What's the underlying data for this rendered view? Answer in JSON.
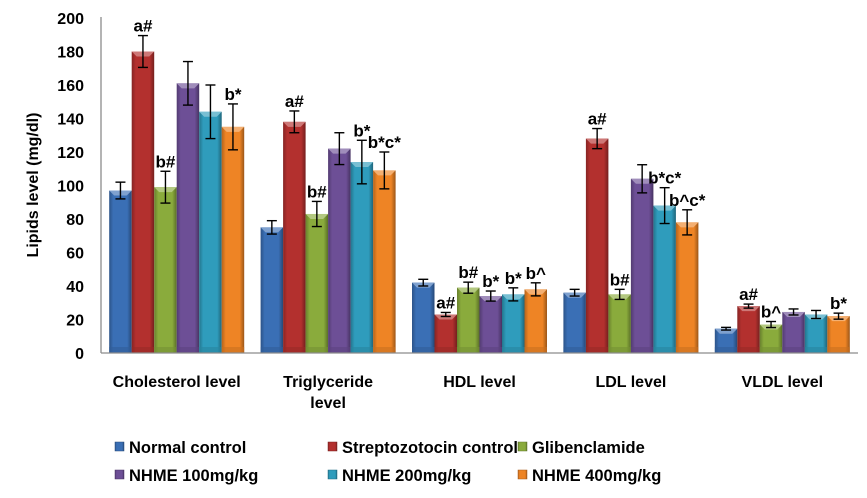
{
  "chart_data": {
    "type": "bar",
    "title": "",
    "xlabel": "",
    "ylabel": "Lipids level (mg/dl)",
    "ylim": [
      0,
      200
    ],
    "yticks": [
      0,
      20,
      40,
      60,
      80,
      100,
      120,
      140,
      160,
      180,
      200
    ],
    "grid": false,
    "legend_position": "bottom",
    "categories": [
      "Cholesterol level",
      "Triglyceride level",
      "HDL level",
      "LDL level",
      "VLDL level"
    ],
    "category_label_lines": [
      [
        "Cholesterol level"
      ],
      [
        "Triglyceride",
        "level"
      ],
      [
        "HDL level"
      ],
      [
        "LDL level"
      ],
      [
        "VLDL level"
      ]
    ],
    "series": [
      {
        "name": "Normal control",
        "color": "#3a6fb5",
        "values": [
          97,
          75,
          42,
          36,
          14.5
        ],
        "errors": [
          5,
          4,
          2,
          2,
          0.8
        ],
        "annotations": [
          "",
          "",
          "",
          "",
          ""
        ]
      },
      {
        "name": "Streptozotocin control",
        "color": "#b3302e",
        "values": [
          180,
          138,
          23,
          128,
          28
        ],
        "errors": [
          9.5,
          6.5,
          1.2,
          6,
          1.2
        ],
        "annotations": [
          "a#",
          "a#",
          "a#",
          "a#",
          "a#"
        ]
      },
      {
        "name": "Glibenclamide",
        "color": "#8aab3c",
        "values": [
          99,
          83,
          39,
          35,
          17
        ],
        "errors": [
          9.5,
          7.5,
          3.3,
          3,
          1.8
        ],
        "annotations": [
          "b#",
          "b#",
          "b#",
          "b#",
          "b^"
        ]
      },
      {
        "name": "NHME 100mg/kg",
        "color": "#6d4f96",
        "values": [
          161,
          122,
          34,
          104,
          24.5
        ],
        "errors": [
          13,
          9.5,
          3,
          8.4,
          1.8
        ],
        "annotations": [
          "",
          "",
          "b*",
          "",
          ""
        ]
      },
      {
        "name": "NHME 200mg/kg",
        "color": "#2f9cbc",
        "values": [
          144,
          114,
          35,
          88,
          23
        ],
        "errors": [
          16,
          13,
          3.9,
          10.7,
          2.4
        ],
        "annotations": [
          "",
          "b*",
          "b*",
          "b*c*",
          ""
        ]
      },
      {
        "name": "NHME 400mg/kg",
        "color": "#ee8425",
        "values": [
          135,
          109,
          38,
          78,
          22
        ],
        "errors": [
          13.7,
          11,
          3.9,
          7.5,
          1.8
        ],
        "annotations": [
          "b*",
          "b*c*",
          "b^",
          "b^c*",
          "b*"
        ]
      }
    ]
  }
}
